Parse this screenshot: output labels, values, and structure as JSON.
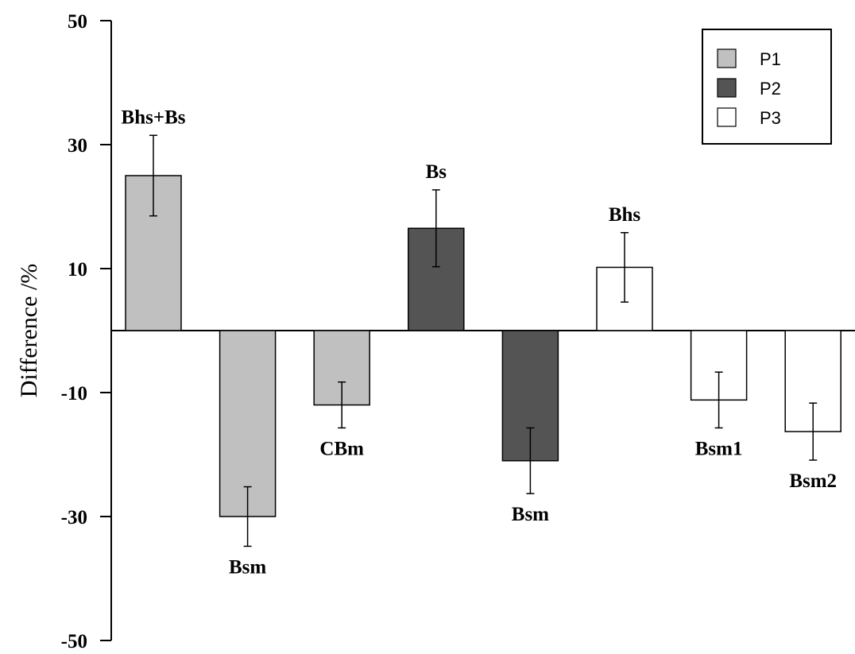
{
  "chart_data": {
    "type": "bar",
    "ylabel": "Difference /%",
    "xlabel": "",
    "ylim": [
      -50,
      50
    ],
    "yticks": [
      50,
      30,
      10,
      -10,
      -30,
      -50
    ],
    "grid": false,
    "legend_position": "top-right",
    "series": [
      {
        "name": "P1",
        "color": "#c0c0c0"
      },
      {
        "name": "P2",
        "color": "#545454"
      },
      {
        "name": "P3",
        "color": "#ffffff"
      }
    ],
    "bars": [
      {
        "label": "Bhs+Bs",
        "series": "P1",
        "value": 25,
        "error": 6.5
      },
      {
        "label": "Bsm",
        "series": "P1",
        "value": -30,
        "error": 4.8
      },
      {
        "label": "CBm",
        "series": "P1",
        "value": -12,
        "error": 3.7
      },
      {
        "label": "Bs",
        "series": "P2",
        "value": 16.5,
        "error": 6.2
      },
      {
        "label": "Bsm",
        "series": "P2",
        "value": -21,
        "error": 5.3
      },
      {
        "label": "Bhs",
        "series": "P3",
        "value": 10.2,
        "error": 5.6
      },
      {
        "label": "Bsm1",
        "series": "P3",
        "value": -11.2,
        "error": 4.5
      },
      {
        "label": "Bsm2",
        "series": "P3",
        "value": -16.3,
        "error": 4.6
      }
    ]
  }
}
